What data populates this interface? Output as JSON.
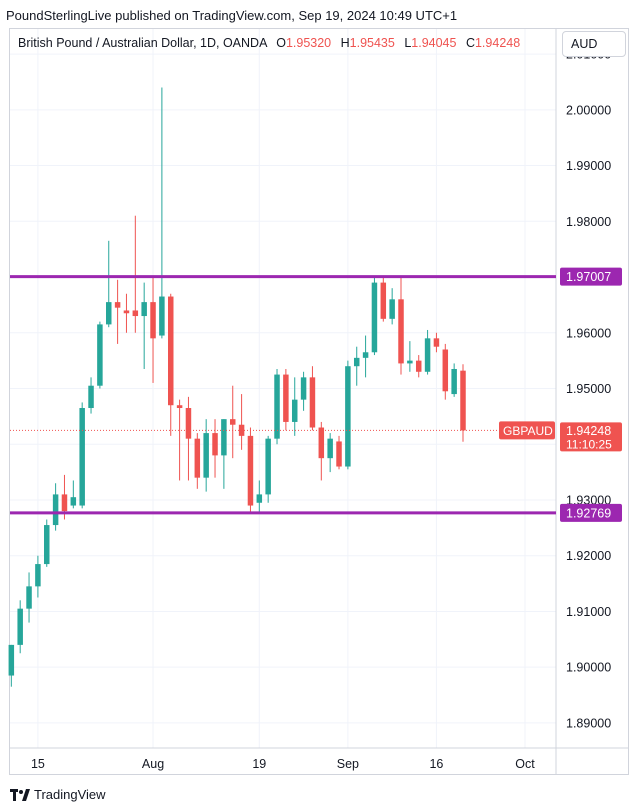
{
  "caption": "PoundSterlingLive published on TradingView.com, Sep 19, 2024 10:49 UTC+1",
  "legend": {
    "symbol": "British Pound / Australian Dollar, 1D, OANDA",
    "o_label": "O",
    "o_value": "1.95320",
    "h_label": "H",
    "h_value": "1.95435",
    "l_label": "L",
    "l_value": "1.94045",
    "c_label": "C",
    "c_value": "1.94248"
  },
  "currency": "AUD",
  "footer": {
    "brand": "TradingView"
  },
  "colors": {
    "up": "#26a69a",
    "down": "#ef5350",
    "level": "#9c27b0",
    "grid": "#f0f3fa",
    "axis_text": "#131722"
  },
  "chart_data": {
    "type": "candlestick",
    "symbol": "GBPAUD",
    "y_ticks": [
      "2.01000",
      "2.00000",
      "1.99000",
      "1.98000",
      "1.97000",
      "1.96000",
      "1.95000",
      "1.94000",
      "1.93000",
      "1.92000",
      "1.91000",
      "1.90000",
      "1.89000"
    ],
    "ylim": [
      1.8855,
      2.0145
    ],
    "x_ticks": [
      {
        "label": "15",
        "index": 3
      },
      {
        "label": "Aug",
        "index": 16
      },
      {
        "label": "19",
        "index": 28
      },
      {
        "label": "Sep",
        "index": 38
      },
      {
        "label": "16",
        "index": 48
      },
      {
        "label": "Oct",
        "index": 58
      }
    ],
    "x_range": [
      -0.15,
      61.5
    ],
    "levels": [
      {
        "value": 1.97007,
        "label": "1.97007"
      },
      {
        "value": 1.92769,
        "label": "1.92769"
      }
    ],
    "last_price": {
      "value": 1.94248,
      "label": "1.94248",
      "symbol": "GBPAUD",
      "countdown": "11:10:25"
    },
    "candles": [
      {
        "i": 0,
        "o": 1.8985,
        "h": 1.904,
        "l": 1.8965,
        "c": 1.904
      },
      {
        "i": 1,
        "o": 1.904,
        "h": 1.912,
        "l": 1.9025,
        "c": 1.9105
      },
      {
        "i": 2,
        "o": 1.9105,
        "h": 1.917,
        "l": 1.908,
        "c": 1.9145
      },
      {
        "i": 3,
        "o": 1.9145,
        "h": 1.92,
        "l": 1.9125,
        "c": 1.9185
      },
      {
        "i": 4,
        "o": 1.9185,
        "h": 1.9265,
        "l": 1.918,
        "c": 1.9255
      },
      {
        "i": 5,
        "o": 1.9255,
        "h": 1.933,
        "l": 1.9245,
        "c": 1.931
      },
      {
        "i": 6,
        "o": 1.931,
        "h": 1.9345,
        "l": 1.9265,
        "c": 1.928
      },
      {
        "i": 7,
        "o": 1.929,
        "h": 1.9335,
        "l": 1.9285,
        "c": 1.9305
      },
      {
        "i": 8,
        "o": 1.929,
        "h": 1.9475,
        "l": 1.9285,
        "c": 1.9465
      },
      {
        "i": 9,
        "o": 1.9465,
        "h": 1.952,
        "l": 1.9455,
        "c": 1.9505
      },
      {
        "i": 10,
        "o": 1.9505,
        "h": 1.962,
        "l": 1.95,
        "c": 1.9615
      },
      {
        "i": 11,
        "o": 1.9615,
        "h": 1.9765,
        "l": 1.961,
        "c": 1.9655
      },
      {
        "i": 12,
        "o": 1.9655,
        "h": 1.9695,
        "l": 1.958,
        "c": 1.9645
      },
      {
        "i": 13,
        "o": 1.964,
        "h": 1.967,
        "l": 1.96,
        "c": 1.9635
      },
      {
        "i": 14,
        "o": 1.964,
        "h": 1.981,
        "l": 1.96,
        "c": 1.963
      },
      {
        "i": 15,
        "o": 1.963,
        "h": 1.969,
        "l": 1.9535,
        "c": 1.9655
      },
      {
        "i": 16,
        "o": 1.9655,
        "h": 1.97,
        "l": 1.951,
        "c": 1.959
      },
      {
        "i": 17,
        "o": 1.9595,
        "h": 2.004,
        "l": 1.959,
        "c": 1.9665
      },
      {
        "i": 18,
        "o": 1.9665,
        "h": 1.967,
        "l": 1.9415,
        "c": 1.947
      },
      {
        "i": 19,
        "o": 1.947,
        "h": 1.948,
        "l": 1.9335,
        "c": 1.9465
      },
      {
        "i": 20,
        "o": 1.9465,
        "h": 1.9485,
        "l": 1.9335,
        "c": 1.941
      },
      {
        "i": 21,
        "o": 1.941,
        "h": 1.942,
        "l": 1.932,
        "c": 1.934
      },
      {
        "i": 22,
        "o": 1.934,
        "h": 1.9445,
        "l": 1.9315,
        "c": 1.942
      },
      {
        "i": 23,
        "o": 1.942,
        "h": 1.9445,
        "l": 1.934,
        "c": 1.938
      },
      {
        "i": 24,
        "o": 1.938,
        "h": 1.9445,
        "l": 1.932,
        "c": 1.9445
      },
      {
        "i": 25,
        "o": 1.9445,
        "h": 1.9505,
        "l": 1.9375,
        "c": 1.9435
      },
      {
        "i": 26,
        "o": 1.9435,
        "h": 1.949,
        "l": 1.939,
        "c": 1.9415
      },
      {
        "i": 27,
        "o": 1.9415,
        "h": 1.943,
        "l": 1.9275,
        "c": 1.929
      },
      {
        "i": 28,
        "o": 1.9295,
        "h": 1.9335,
        "l": 1.9275,
        "c": 1.931
      },
      {
        "i": 29,
        "o": 1.931,
        "h": 1.9415,
        "l": 1.9295,
        "c": 1.941
      },
      {
        "i": 30,
        "o": 1.941,
        "h": 1.9535,
        "l": 1.94,
        "c": 1.9525
      },
      {
        "i": 31,
        "o": 1.9525,
        "h": 1.9535,
        "l": 1.9425,
        "c": 1.944
      },
      {
        "i": 32,
        "o": 1.944,
        "h": 1.952,
        "l": 1.9415,
        "c": 1.948
      },
      {
        "i": 33,
        "o": 1.948,
        "h": 1.953,
        "l": 1.946,
        "c": 1.952
      },
      {
        "i": 34,
        "o": 1.952,
        "h": 1.954,
        "l": 1.9425,
        "c": 1.943
      },
      {
        "i": 35,
        "o": 1.943,
        "h": 1.944,
        "l": 1.9335,
        "c": 1.9375
      },
      {
        "i": 36,
        "o": 1.9375,
        "h": 1.942,
        "l": 1.935,
        "c": 1.941
      },
      {
        "i": 37,
        "o": 1.9405,
        "h": 1.9415,
        "l": 1.9355,
        "c": 1.936
      },
      {
        "i": 38,
        "o": 1.936,
        "h": 1.955,
        "l": 1.9355,
        "c": 1.954
      },
      {
        "i": 39,
        "o": 1.954,
        "h": 1.9575,
        "l": 1.9505,
        "c": 1.9555
      },
      {
        "i": 40,
        "o": 1.9555,
        "h": 1.9595,
        "l": 1.952,
        "c": 1.9565
      },
      {
        "i": 41,
        "o": 1.9565,
        "h": 1.97,
        "l": 1.956,
        "c": 1.969
      },
      {
        "i": 42,
        "o": 1.969,
        "h": 1.97,
        "l": 1.962,
        "c": 1.9625
      },
      {
        "i": 43,
        "o": 1.9625,
        "h": 1.968,
        "l": 1.9615,
        "c": 1.966
      },
      {
        "i": 44,
        "o": 1.966,
        "h": 1.97,
        "l": 1.9525,
        "c": 1.9545
      },
      {
        "i": 45,
        "o": 1.9545,
        "h": 1.9585,
        "l": 1.953,
        "c": 1.955
      },
      {
        "i": 46,
        "o": 1.955,
        "h": 1.956,
        "l": 1.952,
        "c": 1.953
      },
      {
        "i": 47,
        "o": 1.953,
        "h": 1.9605,
        "l": 1.9525,
        "c": 1.959
      },
      {
        "i": 48,
        "o": 1.959,
        "h": 1.96,
        "l": 1.9565,
        "c": 1.9575
      },
      {
        "i": 49,
        "o": 1.957,
        "h": 1.958,
        "l": 1.948,
        "c": 1.9495
      },
      {
        "i": 50,
        "o": 1.949,
        "h": 1.9545,
        "l": 1.9485,
        "c": 1.9535
      },
      {
        "i": 51,
        "o": 1.9532,
        "h": 1.95435,
        "l": 1.94045,
        "c": 1.94248
      }
    ]
  }
}
